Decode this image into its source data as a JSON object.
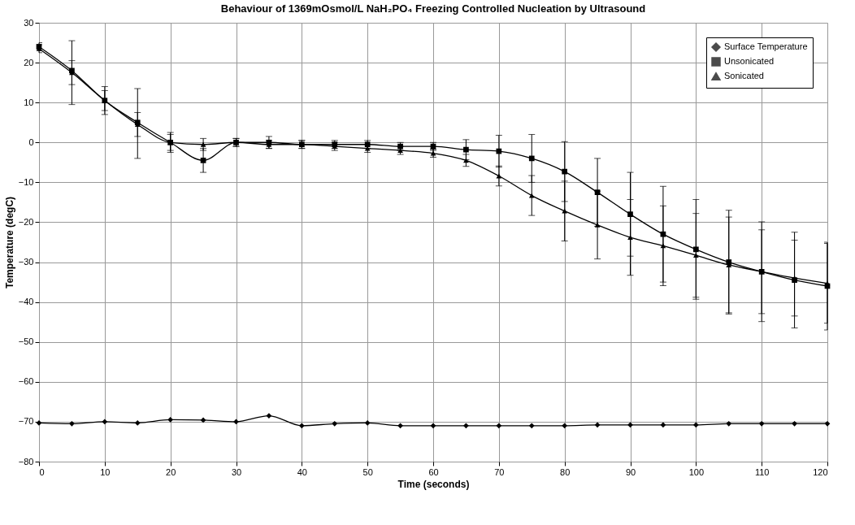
{
  "chart_data": {
    "type": "line",
    "title": "Behaviour of 1369mOsmol/L NaH₂PO₄ Freezing Controlled Nucleation by Ultrasound",
    "xlabel": "Time (seconds)",
    "ylabel": "Temperature (degC)",
    "x": [
      0,
      5,
      10,
      15,
      20,
      25,
      30,
      35,
      40,
      45,
      50,
      55,
      60,
      65,
      70,
      75,
      80,
      85,
      90,
      95,
      100,
      105,
      110,
      115,
      120
    ],
    "xlim": [
      0,
      120
    ],
    "xticks": [
      0,
      10,
      20,
      30,
      40,
      50,
      60,
      70,
      80,
      90,
      100,
      110,
      120
    ],
    "ylim": [
      -80,
      30
    ],
    "yticks": [
      -80,
      -70,
      -60,
      -50,
      -40,
      -30,
      -20,
      -10,
      0,
      10,
      20,
      30
    ],
    "grid": true,
    "legend": "top right",
    "line_style": "solid",
    "series": [
      {
        "name": "Surface Temperature",
        "color": "#000000",
        "marker": "diamond",
        "values": [
          -70.3,
          -70.5,
          -70,
          -70.3,
          -69.5,
          -69.6,
          -70,
          -68.5,
          -71,
          -70.5,
          -70.3,
          -71,
          -71,
          -71,
          -71,
          -71,
          -71,
          -70.8,
          -70.8,
          -70.8,
          -70.8,
          -70.5,
          -70.5,
          -70.5,
          -70.5
        ]
      },
      {
        "name": "Unsonicated",
        "color": "#000000",
        "marker": "square",
        "values": [
          24,
          18,
          10.5,
          5,
          0,
          -4.5,
          0,
          0,
          -0.5,
          -0.5,
          -0.5,
          -1,
          -1,
          -1.8,
          -2.2,
          -4,
          -7.3,
          -12.5,
          -18,
          -23,
          -26.8,
          -30,
          -32.4,
          -34.5,
          -36
        ],
        "errors": [
          1,
          [
            9.5,
            25.5
          ],
          3.5,
          [
            -4,
            13.5
          ],
          2.5,
          3,
          1,
          1.5,
          1,
          1,
          1,
          1,
          1,
          2.5,
          4,
          6,
          7.5,
          8.5,
          10.5,
          12,
          12.5,
          13,
          12.5,
          12,
          11
        ]
      },
      {
        "name": "Sonicated",
        "color": "#000000",
        "marker": "triangle",
        "values": [
          23.5,
          17.5,
          10.5,
          4.5,
          0,
          -0.5,
          0,
          -0.5,
          -0.5,
          -1,
          -1.5,
          -2,
          -2.7,
          -4.5,
          -8.4,
          -13.3,
          -17.2,
          -20.7,
          -23.8,
          -25.9,
          -28.3,
          -30.7,
          -32.4,
          -34,
          -35.3
        ],
        "errors": [
          1,
          3,
          2.5,
          3,
          2,
          1.5,
          1,
          1,
          1,
          1,
          1,
          1,
          1,
          1.5,
          2.5,
          5,
          7.5,
          8.5,
          9.5,
          10,
          10.5,
          12,
          10.5,
          9.5,
          10
        ]
      }
    ]
  }
}
